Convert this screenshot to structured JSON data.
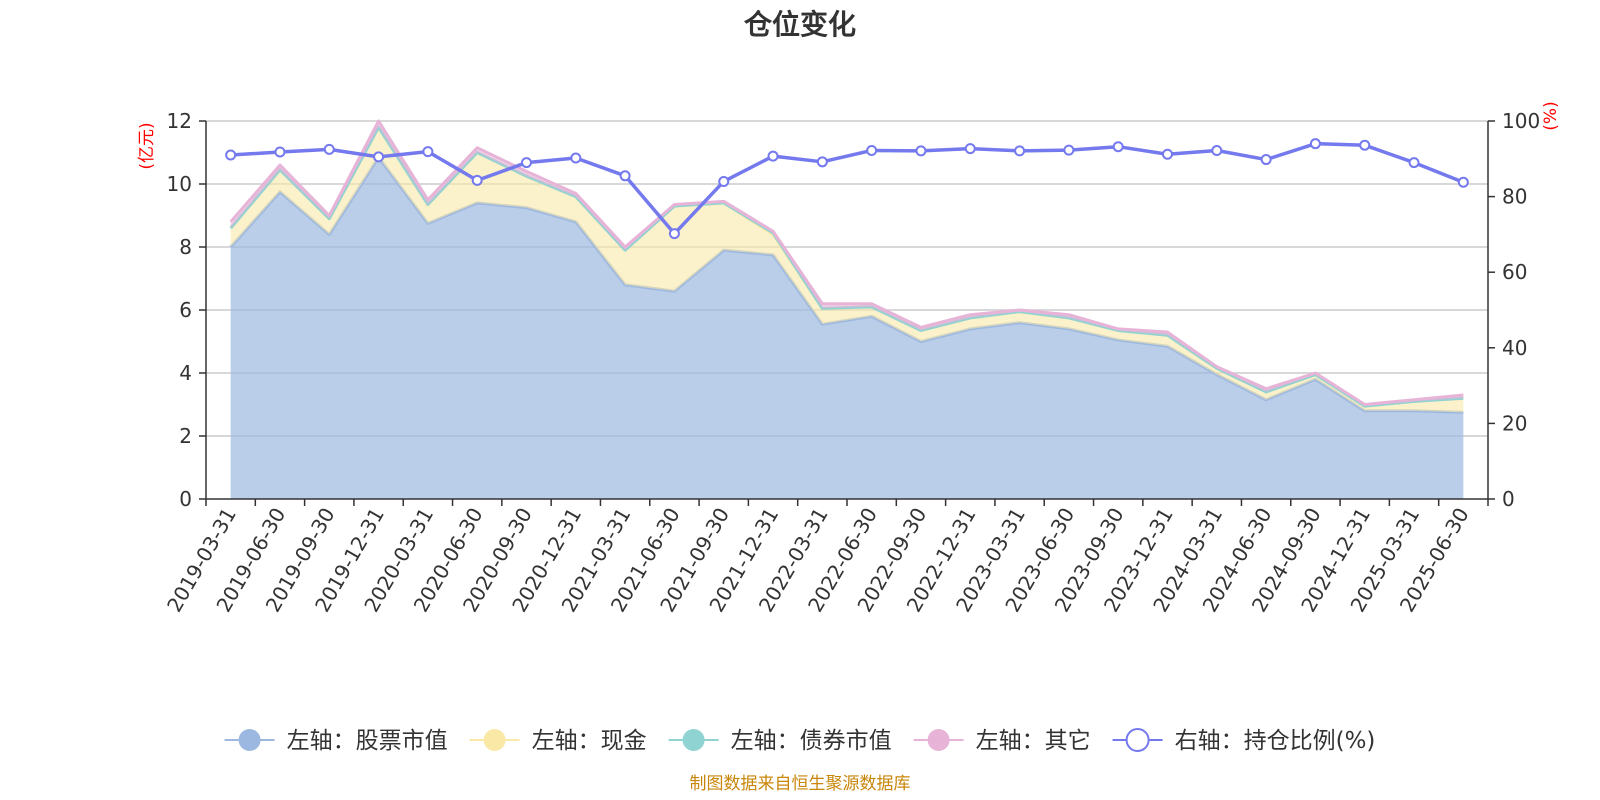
{
  "chart_data": {
    "type": "area",
    "title": "仓位变化",
    "left_axis_unit": "(亿元)",
    "right_axis_unit": "(%)",
    "left_ylim": [
      0,
      12
    ],
    "left_yticks": [
      0,
      2,
      4,
      6,
      8,
      10,
      12
    ],
    "right_ylim": [
      0,
      100
    ],
    "right_yticks": [
      0,
      20,
      40,
      60,
      80,
      100
    ],
    "categories": [
      "2019-03-31",
      "2019-06-30",
      "2019-09-30",
      "2019-12-31",
      "2020-03-31",
      "2020-06-30",
      "2020-09-30",
      "2020-12-31",
      "2021-03-31",
      "2021-06-30",
      "2021-09-30",
      "2021-12-31",
      "2022-03-31",
      "2022-06-30",
      "2022-09-30",
      "2022-12-31",
      "2023-03-31",
      "2023-06-30",
      "2023-09-30",
      "2023-12-31",
      "2024-03-31",
      "2024-06-30",
      "2024-09-30",
      "2024-12-31",
      "2025-03-31",
      "2025-06-30"
    ],
    "series": [
      {
        "name": "左轴：股票市值",
        "axis": "left",
        "stack": true,
        "color": "#9db8e0",
        "values": [
          8.0,
          9.75,
          8.4,
          10.85,
          8.75,
          9.4,
          9.25,
          8.8,
          6.8,
          6.6,
          7.9,
          7.75,
          5.55,
          5.8,
          5.0,
          5.4,
          5.6,
          5.4,
          5.05,
          4.85,
          3.95,
          3.15,
          3.8,
          2.8,
          2.8,
          2.75
        ]
      },
      {
        "name": "左轴：现金",
        "axis": "left",
        "stack": true,
        "color": "#f9e8a6",
        "values": [
          0.6,
          0.7,
          0.5,
          0.95,
          0.6,
          1.6,
          1.0,
          0.8,
          1.1,
          2.7,
          1.5,
          0.65,
          0.5,
          0.3,
          0.35,
          0.35,
          0.35,
          0.35,
          0.3,
          0.35,
          0.2,
          0.25,
          0.15,
          0.15,
          0.3,
          0.45
        ]
      },
      {
        "name": "左轴：债券市值",
        "axis": "left",
        "stack": true,
        "color": "#8fd3d3",
        "values": [
          0,
          0,
          0,
          0,
          0,
          0,
          0,
          0,
          0,
          0,
          0,
          0.05,
          0,
          0,
          0,
          0,
          0,
          0,
          0,
          0,
          0,
          0,
          0,
          0,
          0,
          0
        ]
      },
      {
        "name": "左轴：其它",
        "axis": "left",
        "stack": true,
        "color": "#e7b4d8",
        "values": [
          0.2,
          0.15,
          0.1,
          0.2,
          0.15,
          0.15,
          0.15,
          0.1,
          0.1,
          0.05,
          0.05,
          0.05,
          0.15,
          0.1,
          0.1,
          0.1,
          0.05,
          0.1,
          0.05,
          0.1,
          0.05,
          0.1,
          0.05,
          0.05,
          0.05,
          0.1
        ]
      },
      {
        "name": "右轴：持仓比例(%)",
        "axis": "right",
        "type": "line",
        "color": "#7479ee",
        "values": [
          91.0,
          91.8,
          92.5,
          90.5,
          91.9,
          84.3,
          89.0,
          90.2,
          85.5,
          70.2,
          84.0,
          90.7,
          89.2,
          92.2,
          92.1,
          92.7,
          92.1,
          92.3,
          93.2,
          91.2,
          92.2,
          89.8,
          94.0,
          93.6,
          89.0,
          83.8
        ]
      }
    ],
    "legend_position": "bottom",
    "grid": true,
    "source_note": "制图数据来自恒生聚源数据库"
  }
}
